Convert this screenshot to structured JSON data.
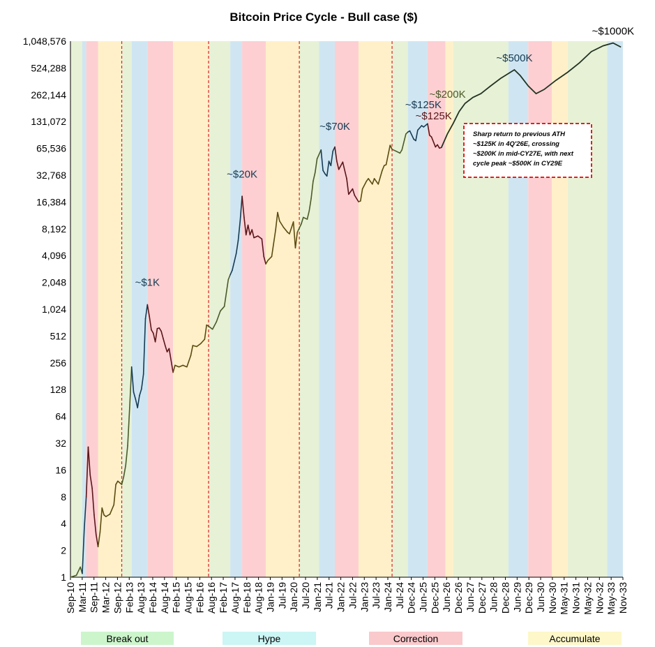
{
  "chart_data": {
    "type": "line",
    "title": "Bitcoin Price Cycle - Bull case ($)",
    "y_scale": "log2",
    "ylim": [
      1,
      1048576
    ],
    "y_ticks": [
      "1",
      "2",
      "4",
      "8",
      "16",
      "32",
      "64",
      "128",
      "256",
      "512",
      "1,024",
      "2,048",
      "4,096",
      "8,192",
      "16,384",
      "32,768",
      "65,536",
      "131,072",
      "262,144",
      "524,288",
      "1,048,576"
    ],
    "x_ticks": [
      "Sep-10",
      "Mar-11",
      "Sep-11",
      "Mar-12",
      "Sep-12",
      "Feb-13",
      "Aug-13",
      "Feb-14",
      "Aug-14",
      "Feb-15",
      "Aug-15",
      "Feb-16",
      "Aug-16",
      "Feb-17",
      "Aug-17",
      "Feb-18",
      "Aug-18",
      "Jan-19",
      "Jul-19",
      "Jan-20",
      "Jul-20",
      "Jan-21",
      "Jul-21",
      "Jan-22",
      "Jul-22",
      "Jan-23",
      "Jul-23",
      "Jan-24",
      "Jul-24",
      "Dec-24",
      "Jun-25",
      "Dec-25",
      "Jun-26",
      "Dec-26",
      "Jun-27",
      "Dec-27",
      "Jun-28",
      "Dec-28",
      "Jun-29",
      "Dec-29",
      "Jun-30",
      "Nov-30",
      "May-31",
      "Nov-31",
      "May-32",
      "Nov-32",
      "May-33",
      "Nov-33"
    ],
    "halvings": [
      "2012-11",
      "2016-07",
      "2020-05",
      "2024-04"
    ],
    "phases": [
      {
        "start": "2010-09",
        "end": "2011-03",
        "phase": "Break out"
      },
      {
        "start": "2011-03",
        "end": "2011-05",
        "phase": "Hype"
      },
      {
        "start": "2011-05",
        "end": "2011-11",
        "phase": "Correction"
      },
      {
        "start": "2011-11",
        "end": "2012-11",
        "phase": "Accumulate"
      },
      {
        "start": "2012-11",
        "end": "2013-04",
        "phase": "Break out"
      },
      {
        "start": "2013-04",
        "end": "2013-12",
        "phase": "Hype"
      },
      {
        "start": "2013-12",
        "end": "2015-01",
        "phase": "Correction"
      },
      {
        "start": "2015-01",
        "end": "2016-07",
        "phase": "Accumulate"
      },
      {
        "start": "2016-07",
        "end": "2017-06",
        "phase": "Break out"
      },
      {
        "start": "2017-06",
        "end": "2017-12",
        "phase": "Hype"
      },
      {
        "start": "2017-12",
        "end": "2018-12",
        "phase": "Correction"
      },
      {
        "start": "2018-12",
        "end": "2020-05",
        "phase": "Accumulate"
      },
      {
        "start": "2020-05",
        "end": "2021-03",
        "phase": "Break out"
      },
      {
        "start": "2021-03",
        "end": "2021-11",
        "phase": "Hype"
      },
      {
        "start": "2021-11",
        "end": "2022-11",
        "phase": "Correction"
      },
      {
        "start": "2022-11",
        "end": "2024-04",
        "phase": "Accumulate"
      },
      {
        "start": "2024-04",
        "end": "2024-12",
        "phase": "Break out"
      },
      {
        "start": "2024-12",
        "end": "2025-10",
        "phase": "Hype"
      },
      {
        "start": "2025-10",
        "end": "2026-07",
        "phase": "Correction"
      },
      {
        "start": "2026-07",
        "end": "2026-11",
        "phase": "Accumulate"
      },
      {
        "start": "2026-11",
        "end": "2029-03",
        "phase": "Break out"
      },
      {
        "start": "2029-03",
        "end": "2030-01",
        "phase": "Hype"
      },
      {
        "start": "2030-01",
        "end": "2031-01",
        "phase": "Correction"
      },
      {
        "start": "2031-01",
        "end": "2031-09",
        "phase": "Accumulate"
      },
      {
        "start": "2031-09",
        "end": "2033-05",
        "phase": "Break out"
      },
      {
        "start": "2033-05",
        "end": "2034-01",
        "phase": "Hype"
      }
    ],
    "series": [
      {
        "values_type": "historical",
        "points": [
          [
            "2010-09",
            1.0
          ],
          [
            "2010-12",
            1.05
          ],
          [
            "2011-02",
            1.3
          ],
          [
            "2011-03",
            1.1
          ],
          [
            "2011-04",
            3.5
          ],
          [
            "2011-05",
            8
          ],
          [
            "2011-06",
            29
          ],
          [
            "2011-07",
            14
          ],
          [
            "2011-08",
            10
          ],
          [
            "2011-09",
            5
          ],
          [
            "2011-10",
            3
          ],
          [
            "2011-11",
            2.2
          ],
          [
            "2011-12",
            3.2
          ],
          [
            "2012-01",
            6
          ],
          [
            "2012-02",
            5
          ],
          [
            "2012-03",
            4.8
          ],
          [
            "2012-05",
            5.1
          ],
          [
            "2012-07",
            6.5
          ],
          [
            "2012-08",
            11
          ],
          [
            "2012-09",
            12
          ],
          [
            "2012-11",
            11
          ],
          [
            "2012-12",
            13.5
          ],
          [
            "2013-01",
            18
          ],
          [
            "2013-02",
            30
          ],
          [
            "2013-03",
            80
          ],
          [
            "2013-04",
            230
          ],
          [
            "2013-05",
            120
          ],
          [
            "2013-06",
            100
          ],
          [
            "2013-07",
            80
          ],
          [
            "2013-08",
            110
          ],
          [
            "2013-09",
            130
          ],
          [
            "2013-10",
            190
          ],
          [
            "2013-11",
            800
          ],
          [
            "2013-12",
            1150
          ],
          [
            "2014-01",
            850
          ],
          [
            "2014-02",
            600
          ],
          [
            "2014-03",
            550
          ],
          [
            "2014-04",
            440
          ],
          [
            "2014-05",
            620
          ],
          [
            "2014-06",
            630
          ],
          [
            "2014-07",
            580
          ],
          [
            "2014-08",
            480
          ],
          [
            "2014-09",
            400
          ],
          [
            "2014-10",
            340
          ],
          [
            "2014-11",
            370
          ],
          [
            "2015-01",
            200
          ],
          [
            "2015-02",
            240
          ],
          [
            "2015-04",
            230
          ],
          [
            "2015-06",
            240
          ],
          [
            "2015-08",
            230
          ],
          [
            "2015-10",
            310
          ],
          [
            "2015-11",
            400
          ],
          [
            "2016-01",
            390
          ],
          [
            "2016-03",
            420
          ],
          [
            "2016-05",
            470
          ],
          [
            "2016-06",
            680
          ],
          [
            "2016-07",
            660
          ],
          [
            "2016-09",
            610
          ],
          [
            "2016-11",
            740
          ],
          [
            "2017-01",
            980
          ],
          [
            "2017-03",
            1100
          ],
          [
            "2017-05",
            2200
          ],
          [
            "2017-06",
            2500
          ],
          [
            "2017-07",
            2800
          ],
          [
            "2017-09",
            4300
          ],
          [
            "2017-10",
            6000
          ],
          [
            "2017-11",
            10000
          ],
          [
            "2017-12",
            19000
          ],
          [
            "2018-01",
            11000
          ],
          [
            "2018-02",
            7000
          ],
          [
            "2018-03",
            9000
          ],
          [
            "2018-04",
            7000
          ],
          [
            "2018-05",
            8000
          ],
          [
            "2018-06",
            6500
          ],
          [
            "2018-08",
            6800
          ],
          [
            "2018-10",
            6300
          ],
          [
            "2018-11",
            4000
          ],
          [
            "2018-12",
            3300
          ],
          [
            "2019-01",
            3600
          ],
          [
            "2019-03",
            4000
          ],
          [
            "2019-05",
            8000
          ],
          [
            "2019-06",
            12500
          ],
          [
            "2019-07",
            10000
          ],
          [
            "2019-09",
            8500
          ],
          [
            "2019-11",
            7500
          ],
          [
            "2019-12",
            7200
          ],
          [
            "2020-02",
            9800
          ],
          [
            "2020-03",
            5000
          ],
          [
            "2020-04",
            7500
          ],
          [
            "2020-06",
            9300
          ],
          [
            "2020-07",
            11000
          ],
          [
            "2020-09",
            10500
          ],
          [
            "2020-10",
            13000
          ],
          [
            "2020-11",
            18000
          ],
          [
            "2020-12",
            28000
          ],
          [
            "2021-01",
            35000
          ],
          [
            "2021-02",
            50000
          ],
          [
            "2021-04",
            63000
          ],
          [
            "2021-05",
            37000
          ],
          [
            "2021-06",
            34000
          ],
          [
            "2021-07",
            32000
          ],
          [
            "2021-08",
            47000
          ],
          [
            "2021-09",
            42000
          ],
          [
            "2021-10",
            61000
          ],
          [
            "2021-11",
            68000
          ],
          [
            "2021-12",
            47000
          ],
          [
            "2022-01",
            38000
          ],
          [
            "2022-03",
            46000
          ],
          [
            "2022-05",
            30000
          ],
          [
            "2022-06",
            20000
          ],
          [
            "2022-08",
            23000
          ],
          [
            "2022-09",
            19500
          ],
          [
            "2022-11",
            16500
          ],
          [
            "2022-12",
            16800
          ],
          [
            "2023-01",
            23000
          ],
          [
            "2023-03",
            28000
          ],
          [
            "2023-04",
            30000
          ],
          [
            "2023-06",
            26000
          ],
          [
            "2023-07",
            30000
          ],
          [
            "2023-09",
            26000
          ],
          [
            "2023-11",
            37000
          ],
          [
            "2023-12",
            42000
          ],
          [
            "2024-01",
            43000
          ],
          [
            "2024-03",
            71000
          ],
          [
            "2024-04",
            64000
          ],
          [
            "2024-06",
            61000
          ],
          [
            "2024-08",
            58000
          ],
          [
            "2024-09",
            63000
          ],
          [
            "2024-11",
            95000
          ],
          [
            "2024-12",
            100000
          ],
          [
            "2025-01",
            103000
          ],
          [
            "2025-03",
            83000
          ],
          [
            "2025-04",
            80000
          ],
          [
            "2025-05",
            105000
          ],
          [
            "2025-07",
            118000
          ],
          [
            "2025-08",
            114000
          ],
          [
            "2025-10",
            124000
          ],
          [
            "2025-11",
            92000
          ],
          [
            "2025-12",
            88000
          ],
          [
            "2026-02",
            68000
          ],
          [
            "2026-03",
            72000
          ],
          [
            "2026-04",
            66000
          ],
          [
            "2026-05",
            67000
          ]
        ]
      },
      {
        "values_type": "forecast",
        "points": [
          [
            "2026-05",
            67000
          ],
          [
            "2026-08",
            95000
          ],
          [
            "2026-11",
            125000
          ],
          [
            "2027-02",
            170000
          ],
          [
            "2027-05",
            210000
          ],
          [
            "2027-09",
            245000
          ],
          [
            "2028-01",
            270000
          ],
          [
            "2028-06",
            330000
          ],
          [
            "2028-11",
            400000
          ],
          [
            "2029-06",
            500000
          ],
          [
            "2029-09",
            430000
          ],
          [
            "2030-01",
            330000
          ],
          [
            "2030-05",
            270000
          ],
          [
            "2030-09",
            300000
          ],
          [
            "2031-03",
            380000
          ],
          [
            "2031-09",
            470000
          ],
          [
            "2032-03",
            600000
          ],
          [
            "2032-09",
            800000
          ],
          [
            "2033-03",
            930000
          ],
          [
            "2033-08",
            1000000
          ],
          [
            "2033-12",
            900000
          ]
        ]
      }
    ],
    "annotations": [
      {
        "text": "~$1K",
        "x": "2013-12",
        "y": 1450
      },
      {
        "text": "~$20K",
        "x": "2017-12",
        "y": 24000
      },
      {
        "text": "~$70K",
        "x": "2021-11",
        "y": 85000
      },
      {
        "text": "~$125K",
        "x": "2025-10",
        "y": 155000
      },
      {
        "text": "~$125K",
        "x": "2026-11",
        "y": 125000
      },
      {
        "text": "~$200K",
        "x": "2027-06",
        "y": 210000
      },
      {
        "text": "~$500K",
        "x": "2029-06",
        "y": 500000
      },
      {
        "text": "~$1000K",
        "x": "2033-08",
        "y": 1000000
      }
    ],
    "callout": [
      "Sharp return to previous ATH",
      "~$125K in 4Q'26E, crossing",
      "~$200K in mid-CY27E, with next",
      "cycle peak ~$500K in CY29E"
    ],
    "legend": [
      {
        "label": "Break out",
        "color": "#ccf5cc"
      },
      {
        "label": "Hype",
        "color": "#ccf5f5"
      },
      {
        "label": "Correction",
        "color": "#f9c9cc"
      },
      {
        "label": "Accumulate",
        "color": "#fdf7c9"
      }
    ],
    "phase_colors": {
      "Break out": "#e7f1d6",
      "Hype": "#cfe6f2",
      "Correction": "#fdcfd2",
      "Accumulate": "#fff0c9"
    },
    "line_colors": {
      "Break out": "#4a5a28",
      "Hype": "#163a52",
      "Correction": "#5a1518",
      "Accumulate": "#5a4a10",
      "forecast": "#223322"
    },
    "halving_color": "#e02020"
  }
}
